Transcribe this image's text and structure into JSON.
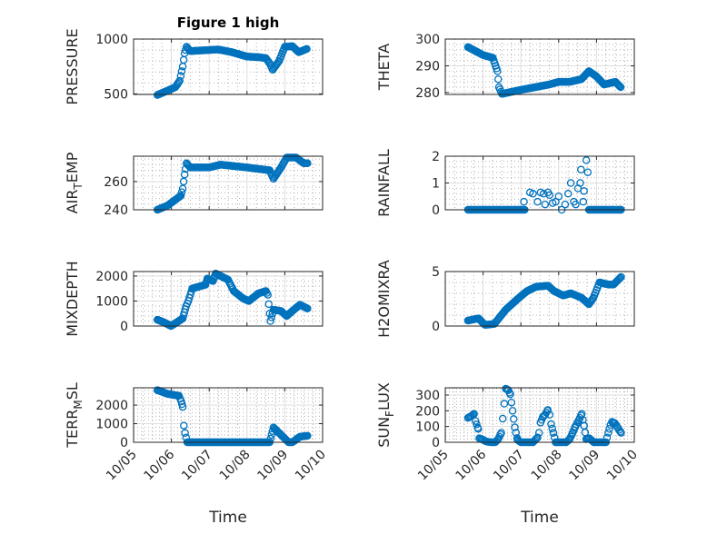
{
  "title": "Figure 1 high",
  "xlabel": "Time",
  "marker_color": "#0072BD",
  "chart_data": [
    {
      "type": "scatter",
      "id": "pressure",
      "ylabel": {
        "main": "PRESSURE",
        "sub": "",
        "rest": ""
      },
      "ylim": [
        495,
        1000
      ],
      "yticks": [
        500,
        1000
      ],
      "xlim": [
        0,
        5
      ],
      "points": [
        [
          0.63,
          490
        ],
        [
          0.9,
          530
        ],
        [
          1.1,
          560
        ],
        [
          1.22,
          620
        ],
        [
          1.3,
          750
        ],
        [
          1.35,
          870
        ],
        [
          1.4,
          930
        ],
        [
          1.5,
          890
        ],
        [
          2.24,
          905
        ],
        [
          2.6,
          880
        ],
        [
          3.0,
          840
        ],
        [
          3.3,
          835
        ],
        [
          3.5,
          825
        ],
        [
          3.6,
          780
        ],
        [
          3.68,
          720
        ],
        [
          3.85,
          800
        ],
        [
          4.0,
          930
        ],
        [
          4.2,
          935
        ],
        [
          4.37,
          880
        ],
        [
          4.58,
          910
        ]
      ]
    },
    {
      "type": "scatter",
      "id": "theta",
      "ylabel": {
        "main": "THETA",
        "sub": "",
        "rest": ""
      },
      "ylim": [
        279.3,
        300
      ],
      "yticks": [
        280,
        290,
        300
      ],
      "xlim": [
        0,
        5
      ],
      "points": [
        [
          0.6,
          297
        ],
        [
          1.0,
          294
        ],
        [
          1.26,
          293
        ],
        [
          1.33,
          290
        ],
        [
          1.38,
          288
        ],
        [
          1.42,
          282
        ],
        [
          1.5,
          279.5
        ],
        [
          2.0,
          281
        ],
        [
          2.75,
          283
        ],
        [
          3.0,
          284
        ],
        [
          3.3,
          284
        ],
        [
          3.6,
          285
        ],
        [
          3.8,
          288
        ],
        [
          4.0,
          286
        ],
        [
          4.2,
          283
        ],
        [
          4.5,
          284
        ],
        [
          4.64,
          282
        ]
      ]
    },
    {
      "type": "scatter",
      "id": "air_temp",
      "ylabel": {
        "main": "AIR",
        "sub": "T",
        "rest": "EMP"
      },
      "ylim": [
        240,
        278
      ],
      "yticks": [
        240,
        260
      ],
      "xlim": [
        0,
        5
      ],
      "points": [
        [
          0.63,
          240
        ],
        [
          0.9,
          243
        ],
        [
          1.25,
          250
        ],
        [
          1.3,
          255
        ],
        [
          1.35,
          265
        ],
        [
          1.4,
          273
        ],
        [
          1.5,
          270
        ],
        [
          2.0,
          270
        ],
        [
          2.3,
          272
        ],
        [
          3.0,
          270
        ],
        [
          3.6,
          268
        ],
        [
          3.7,
          262
        ],
        [
          3.9,
          270
        ],
        [
          4.05,
          277
        ],
        [
          4.3,
          277
        ],
        [
          4.5,
          273
        ],
        [
          4.6,
          273
        ]
      ]
    },
    {
      "type": "scatter",
      "id": "rainfall",
      "ylabel": {
        "main": "RAINFALL",
        "sub": "",
        "rest": ""
      },
      "ylim": [
        0,
        2
      ],
      "yticks": [
        0,
        1,
        2
      ],
      "xlim": [
        0,
        5
      ],
      "points": [
        [
          0.6,
          0
        ],
        [
          2.1,
          0
        ],
        [
          2.08,
          0.3
        ],
        [
          2.24,
          0.65
        ],
        [
          2.32,
          0.6
        ],
        [
          2.44,
          0.3
        ],
        [
          2.52,
          0.65
        ],
        [
          2.6,
          0.6
        ],
        [
          2.64,
          0.2
        ],
        [
          2.72,
          0.65
        ],
        [
          2.76,
          0.55
        ],
        [
          2.84,
          0.25
        ],
        [
          2.92,
          0.3
        ],
        [
          3.0,
          0.5
        ],
        [
          3.08,
          0
        ],
        [
          3.17,
          0.2
        ],
        [
          3.25,
          0.6
        ],
        [
          3.32,
          1.0
        ],
        [
          3.4,
          0.3
        ],
        [
          3.45,
          0.2
        ],
        [
          3.51,
          0.8
        ],
        [
          3.57,
          1.0
        ],
        [
          3.59,
          1.5
        ],
        [
          3.65,
          0.3
        ],
        [
          3.67,
          0.7
        ],
        [
          3.73,
          1.85
        ],
        [
          3.77,
          1.4
        ],
        [
          3.8,
          0
        ],
        [
          4.65,
          0
        ]
      ]
    },
    {
      "type": "scatter",
      "id": "mixdepth",
      "ylabel": {
        "main": "MIXDEPTH",
        "sub": "",
        "rest": ""
      },
      "ylim": [
        0,
        2180
      ],
      "yticks": [
        0,
        1000,
        2000
      ],
      "xlim": [
        0,
        5
      ],
      "points": [
        [
          0.63,
          250
        ],
        [
          0.8,
          150
        ],
        [
          0.99,
          0
        ],
        [
          1.3,
          300
        ],
        [
          1.39,
          800
        ],
        [
          1.45,
          1000
        ],
        [
          1.55,
          1500
        ],
        [
          1.9,
          1650
        ],
        [
          1.95,
          1900
        ],
        [
          2.1,
          1800
        ],
        [
          2.17,
          2100
        ],
        [
          2.5,
          1850
        ],
        [
          2.65,
          1400
        ],
        [
          2.9,
          1100
        ],
        [
          3.05,
          1000
        ],
        [
          3.3,
          1300
        ],
        [
          3.5,
          1400
        ],
        [
          3.55,
          1250
        ],
        [
          3.6,
          500
        ],
        [
          3.62,
          200
        ],
        [
          3.7,
          650
        ],
        [
          3.9,
          600
        ],
        [
          4.05,
          400
        ],
        [
          4.2,
          600
        ],
        [
          4.4,
          850
        ],
        [
          4.6,
          700
        ]
      ]
    },
    {
      "type": "scatter",
      "id": "h2omixra",
      "ylabel": {
        "main": "H2OMIXRA",
        "sub": "",
        "rest": ""
      },
      "ylim": [
        0,
        5
      ],
      "yticks": [
        0,
        5
      ],
      "xlim": [
        0,
        5
      ],
      "points": [
        [
          0.6,
          0.5
        ],
        [
          0.88,
          0.7
        ],
        [
          1.05,
          0.1
        ],
        [
          1.3,
          0.2
        ],
        [
          1.6,
          1.5
        ],
        [
          1.92,
          2.5
        ],
        [
          2.16,
          3.2
        ],
        [
          2.4,
          3.6
        ],
        [
          2.72,
          3.7
        ],
        [
          2.88,
          3.2
        ],
        [
          3.12,
          2.8
        ],
        [
          3.32,
          3.0
        ],
        [
          3.6,
          2.6
        ],
        [
          3.8,
          2.0
        ],
        [
          3.92,
          2.6
        ],
        [
          4.08,
          4.0
        ],
        [
          4.32,
          3.8
        ],
        [
          4.45,
          3.8
        ],
        [
          4.65,
          4.5
        ]
      ]
    },
    {
      "type": "scatter",
      "id": "terr_msl",
      "ylabel": {
        "main": "TERR",
        "sub": "M",
        "rest": "SL"
      },
      "ylim": [
        0,
        2930
      ],
      "yticks": [
        0,
        1000,
        2000
      ],
      "xlim": [
        0,
        5
      ],
      "points": [
        [
          0.63,
          2800
        ],
        [
          0.9,
          2600
        ],
        [
          1.2,
          2500
        ],
        [
          1.26,
          2200
        ],
        [
          1.3,
          1900
        ],
        [
          1.33,
          900
        ],
        [
          1.36,
          500
        ],
        [
          1.42,
          0
        ],
        [
          3.6,
          0
        ],
        [
          3.7,
          800
        ],
        [
          3.8,
          600
        ],
        [
          3.9,
          400
        ],
        [
          4.1,
          0
        ],
        [
          4.2,
          0
        ],
        [
          4.4,
          300
        ],
        [
          4.6,
          350
        ]
      ]
    },
    {
      "type": "scatter",
      "id": "sun_flux",
      "ylabel": {
        "main": "SUN",
        "sub": "F",
        "rest": "LUX"
      },
      "ylim": [
        0,
        346
      ],
      "yticks": [
        0,
        100,
        200,
        300
      ],
      "xlim": [
        0,
        5
      ],
      "points": [
        [
          0.6,
          155
        ],
        [
          0.68,
          165
        ],
        [
          0.76,
          180
        ],
        [
          0.8,
          135
        ],
        [
          0.87,
          85
        ],
        [
          0.9,
          25
        ],
        [
          0.96,
          20
        ],
        [
          1.08,
          5
        ],
        [
          1.2,
          0
        ],
        [
          1.32,
          0
        ],
        [
          1.4,
          20
        ],
        [
          1.48,
          60
        ],
        [
          1.52,
          150
        ],
        [
          1.56,
          245
        ],
        [
          1.6,
          340
        ],
        [
          1.67,
          330
        ],
        [
          1.72,
          305
        ],
        [
          1.78,
          200
        ],
        [
          1.84,
          95
        ],
        [
          1.91,
          15
        ],
        [
          2.0,
          0
        ],
        [
          2.32,
          0
        ],
        [
          2.44,
          30
        ],
        [
          2.48,
          60
        ],
        [
          2.52,
          125
        ],
        [
          2.58,
          160
        ],
        [
          2.64,
          175
        ],
        [
          2.71,
          205
        ],
        [
          2.76,
          175
        ],
        [
          2.8,
          115
        ],
        [
          2.86,
          60
        ],
        [
          2.92,
          0
        ],
        [
          3.2,
          0
        ],
        [
          3.29,
          20
        ],
        [
          3.37,
          60
        ],
        [
          3.44,
          100
        ],
        [
          3.53,
          140
        ],
        [
          3.61,
          180
        ],
        [
          3.67,
          105
        ],
        [
          3.73,
          20
        ],
        [
          3.81,
          25
        ],
        [
          3.93,
          0
        ],
        [
          4.25,
          0
        ],
        [
          4.31,
          60
        ],
        [
          4.37,
          110
        ],
        [
          4.41,
          130
        ],
        [
          4.49,
          120
        ],
        [
          4.57,
          90
        ],
        [
          4.65,
          60
        ]
      ]
    }
  ],
  "xticks": [
    "10/05",
    "10/06",
    "10/07",
    "10/08",
    "10/09",
    "10/10"
  ]
}
